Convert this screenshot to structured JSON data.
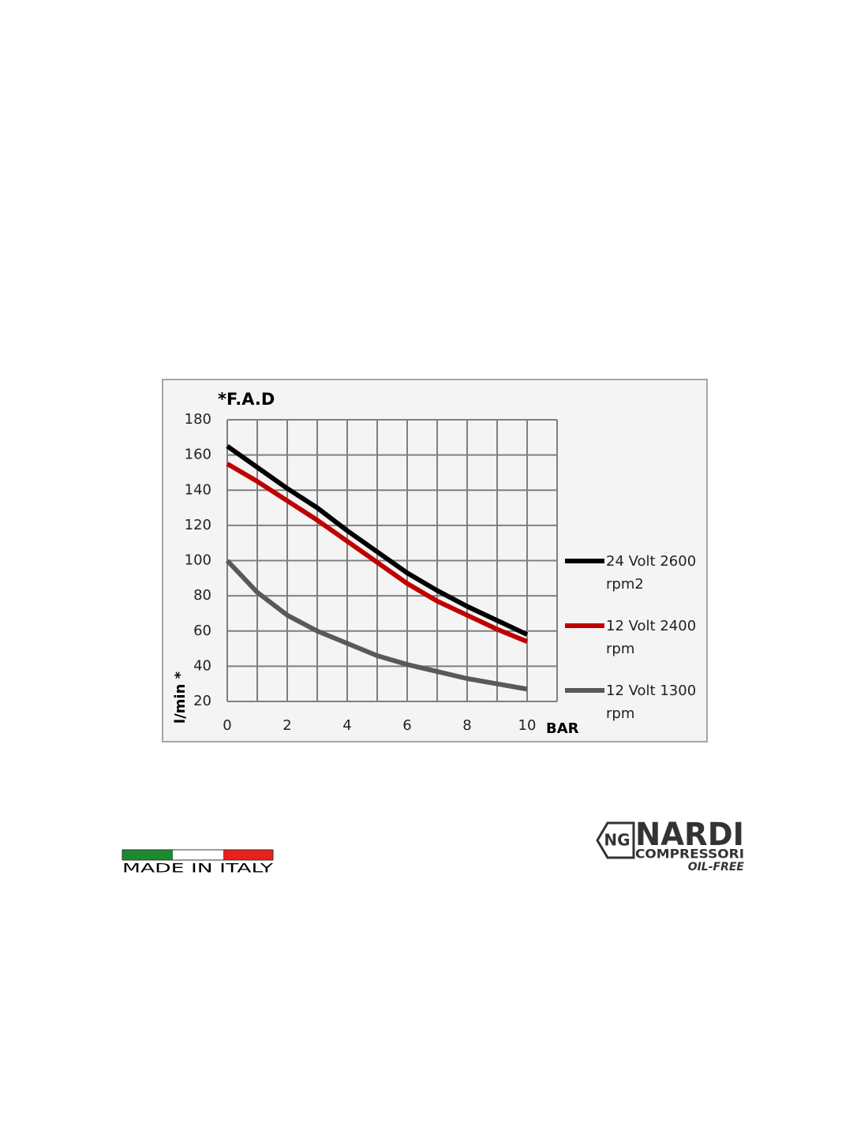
{
  "chart_data": {
    "type": "line",
    "title": "*F.A.D",
    "y_label": "l/min *",
    "x_label": "BAR",
    "x": [
      0,
      1,
      2,
      3,
      4,
      5,
      6,
      7,
      8,
      9,
      10
    ],
    "series": [
      {
        "name": "24 Volt 2600 rpm2",
        "color": "#000000",
        "values": [
          165,
          153,
          141,
          130,
          117,
          105,
          93,
          83,
          74,
          66,
          58
        ]
      },
      {
        "name": "12 Volt 2400 rpm",
        "color": "#c00000",
        "values": [
          155,
          145,
          134,
          123,
          111,
          99,
          87,
          77,
          69,
          61,
          54
        ]
      },
      {
        "name": "12 Volt 1300 rpm",
        "color": "#595959",
        "values": [
          100,
          82,
          69,
          60,
          53,
          46,
          41,
          37,
          33,
          30,
          27
        ]
      }
    ],
    "xlim": [
      0,
      11
    ],
    "xticks": [
      0,
      2,
      4,
      6,
      8,
      10
    ],
    "x_minor_ticks": [
      1,
      3,
      5,
      7,
      9,
      11
    ],
    "ylim": [
      20,
      180
    ],
    "yticks": [
      20,
      40,
      60,
      80,
      100,
      120,
      140,
      160,
      180
    ],
    "grid": true,
    "legend": "right"
  },
  "branding": {
    "made_in": "MADE IN ITALY",
    "logo_mark": "NG",
    "brand": "NARDI",
    "line": "COMPRESSORI",
    "tag": "OIL-FREE"
  }
}
